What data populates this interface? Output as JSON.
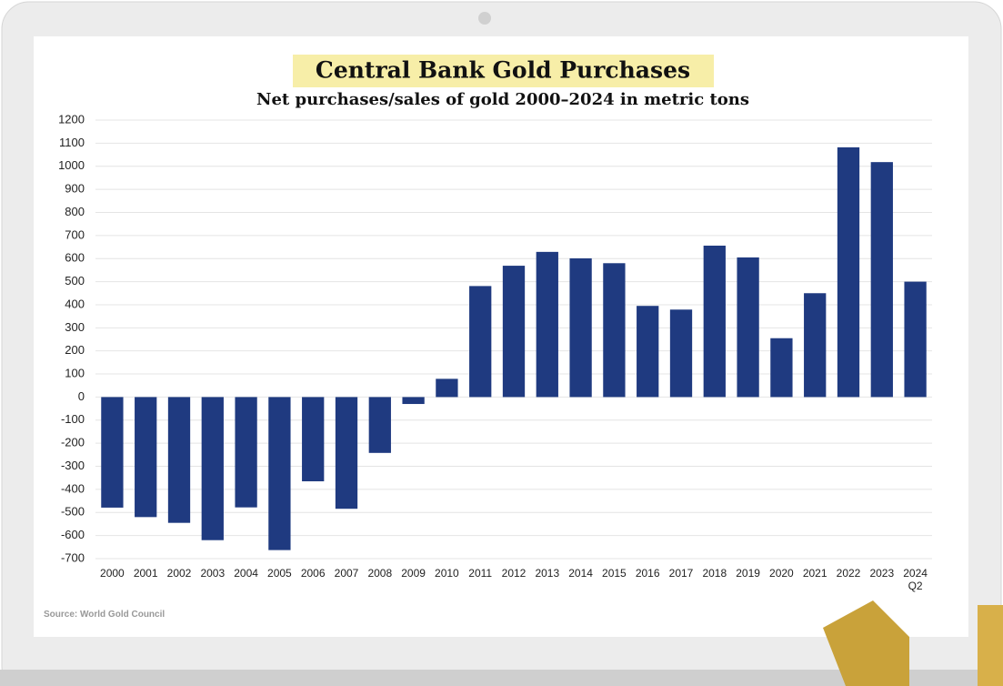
{
  "chart_data": {
    "type": "bar",
    "title": "Central Bank Gold Purchases",
    "subtitle": "Net purchases/sales of gold 2000–2024 in metric tons",
    "source": "Source: World Gold Council",
    "categories": [
      "2000",
      "2001",
      "2002",
      "2003",
      "2004",
      "2005",
      "2006",
      "2007",
      "2008",
      "2009",
      "2010",
      "2011",
      "2012",
      "2013",
      "2014",
      "2015",
      "2016",
      "2017",
      "2018",
      "2019",
      "2020",
      "2021",
      "2022",
      "2023",
      "2024\nQ2"
    ],
    "values": [
      -479,
      -520,
      -545,
      -620,
      -478,
      -663,
      -365,
      -484,
      -242,
      -30,
      79,
      481,
      569,
      629,
      601,
      580,
      395,
      379,
      656,
      605,
      255,
      450,
      1082,
      1018,
      500
    ],
    "color": "#1f3a80",
    "ylim": [
      -700,
      1200
    ],
    "yticks": [
      -700,
      -600,
      -500,
      -400,
      -300,
      -200,
      -100,
      0,
      100,
      200,
      300,
      400,
      500,
      600,
      700,
      800,
      900,
      1000,
      1100,
      1200
    ],
    "grid": true
  }
}
